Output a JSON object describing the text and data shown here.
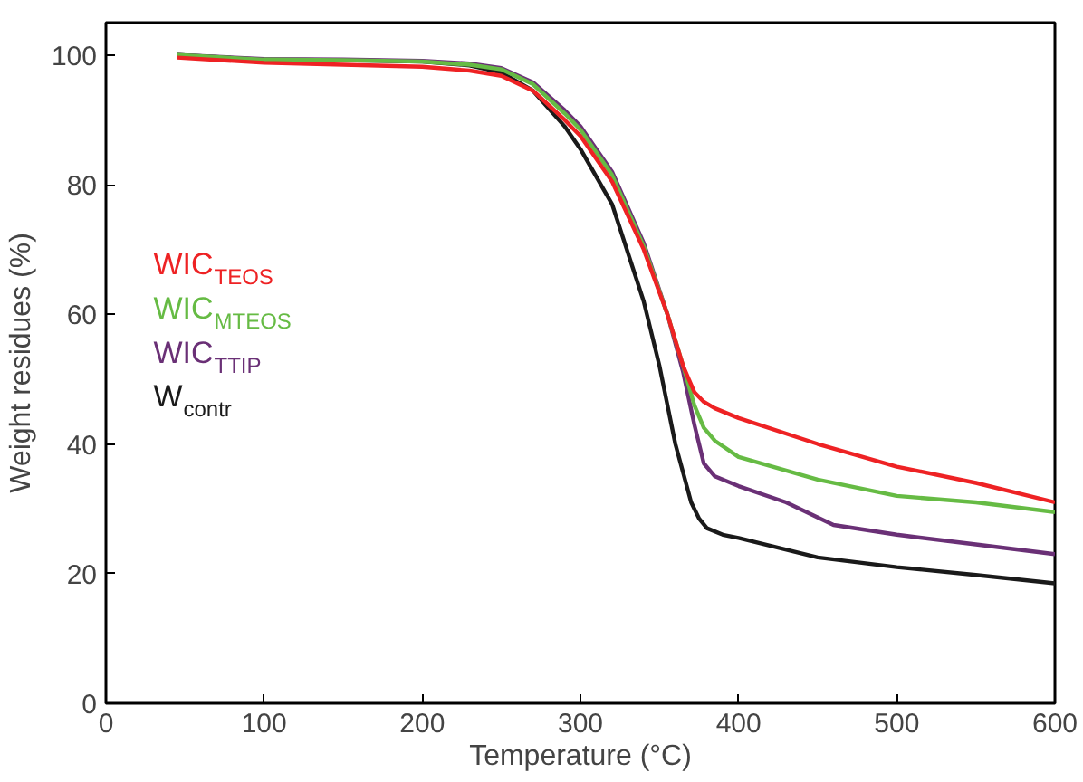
{
  "chart_data": {
    "type": "line",
    "xlabel": "Temperature (°C)",
    "ylabel": "Weight residues (%)",
    "xlim": [
      0,
      600
    ],
    "ylim": [
      0,
      105
    ],
    "xticks": [
      0,
      100,
      200,
      300,
      400,
      500,
      600
    ],
    "yticks": [
      0,
      20,
      40,
      60,
      80,
      100
    ],
    "grid": false,
    "legend": "left",
    "marker": "none",
    "line_style": "solid",
    "series": [
      {
        "name": "WIC$_{TEOS}$",
        "color": "#ee2224",
        "x": [
          45,
          100,
          150,
          200,
          230,
          250,
          270,
          290,
          300,
          320,
          340,
          355,
          365,
          372,
          378,
          385,
          400,
          450,
          500,
          550,
          600
        ],
        "values": [
          99.6,
          98.8,
          98.5,
          98.2,
          97.6,
          96.8,
          94.5,
          90,
          87.5,
          80.5,
          70,
          60,
          52,
          48,
          46.5,
          45.5,
          44,
          40,
          36.5,
          34,
          31
        ]
      },
      {
        "name": "WIC$_{MTEOS}$",
        "color": "#66bb44",
        "x": [
          45,
          100,
          150,
          200,
          230,
          250,
          270,
          290,
          300,
          320,
          340,
          355,
          365,
          372,
          378,
          385,
          400,
          450,
          500,
          550,
          600
        ],
        "values": [
          100,
          99.3,
          99.2,
          99,
          98.5,
          97.8,
          95.5,
          91,
          88.5,
          81.5,
          70.5,
          60,
          52,
          46,
          42.5,
          40.5,
          38,
          34.5,
          32,
          31,
          29.5
        ]
      },
      {
        "name": "WIC$_{TTIP}$",
        "color": "#6a3076",
        "x": [
          45,
          100,
          150,
          200,
          230,
          250,
          270,
          290,
          300,
          320,
          340,
          355,
          365,
          372,
          378,
          385,
          400,
          430,
          460,
          500,
          550,
          600
        ],
        "values": [
          100,
          99.4,
          99.3,
          99.1,
          98.7,
          98,
          95.8,
          91.5,
          89,
          82,
          71,
          60,
          51,
          43,
          37,
          35,
          33.5,
          31,
          27.5,
          26,
          24.5,
          23
        ]
      },
      {
        "name": "W$_{contr}$",
        "color": "#1a1a1a",
        "x": [
          45,
          100,
          150,
          200,
          230,
          250,
          270,
          290,
          300,
          320,
          340,
          350,
          360,
          370,
          375,
          380,
          390,
          400,
          450,
          500,
          550,
          600
        ],
        "values": [
          100,
          99.3,
          99.2,
          99,
          98.4,
          97.3,
          94.5,
          89,
          85.5,
          77,
          62,
          52,
          40,
          31,
          28.5,
          27,
          26,
          25.5,
          22.5,
          21,
          19.8,
          18.5
        ]
      }
    ]
  }
}
